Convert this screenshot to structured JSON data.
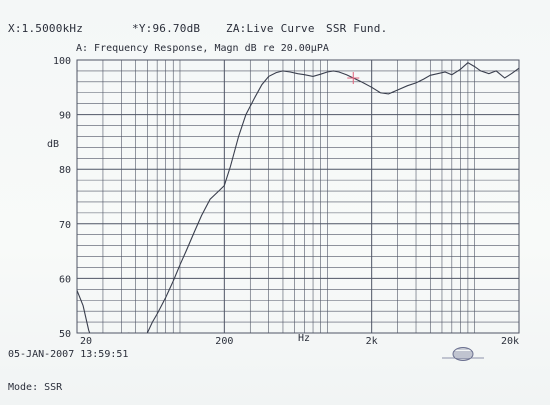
{
  "header": {
    "x_readout": "X:1.5000kHz",
    "y_readout": "*Y:96.70dB",
    "curve_label": "ZA:Live Curve",
    "mode_label": "SSR Fund."
  },
  "footer": {
    "timestamp": "05-JAN-2007 13:59:51",
    "mode": "Mode: SSR"
  },
  "colors": {
    "grid": "#4f5565",
    "curve": "#3a3f4e",
    "cursor": "#e0607a",
    "text": "#2a2e3a"
  },
  "chart_data": {
    "type": "line",
    "title": "A: Frequency Response, Magn dB re 20.00µPA",
    "xlabel": "Hz",
    "ylabel": "dB",
    "xscale": "log",
    "xlim": [
      20,
      20000
    ],
    "ylim": [
      50,
      100
    ],
    "grid": true,
    "x_tick_labels": [
      {
        "value": 20,
        "label": "20"
      },
      {
        "value": 200,
        "label": "200"
      },
      {
        "value": 2000,
        "label": "2k"
      },
      {
        "value": 20000,
        "label": "20k"
      }
    ],
    "y_tick_labels": [
      100,
      90,
      80,
      70,
      60,
      50
    ],
    "cursor": {
      "x": 1500,
      "y": 96.7
    },
    "series": [
      {
        "x": [
          20,
          22,
          24,
          26,
          28,
          30,
          33,
          36,
          40,
          45,
          50,
          55,
          60,
          65,
          70,
          80,
          90,
          100,
          110,
          125,
          140,
          160,
          180,
          200,
          220,
          250,
          280,
          320,
          360,
          400,
          450,
          500,
          560,
          630,
          700,
          800,
          900,
          1000,
          1100,
          1200,
          1350,
          1500,
          1700,
          2000,
          2300,
          2600,
          3000,
          3500,
          4000,
          4500,
          5000,
          5600,
          6300,
          7000,
          8000,
          9000,
          10000,
          11000,
          12500,
          14000,
          16000,
          18000,
          20000
        ],
        "y": [
          57.8,
          55.0,
          50.5,
          48.0,
          46.0,
          46.5,
          47.5,
          48.5,
          49.5,
          50.0,
          49.2,
          48.8,
          50.0,
          52.0,
          53.5,
          56.5,
          59.5,
          62.5,
          65.0,
          68.5,
          71.5,
          74.5,
          75.8,
          77.0,
          80.5,
          86.0,
          90.0,
          93.0,
          95.5,
          97.0,
          97.7,
          98.0,
          97.8,
          97.5,
          97.3,
          97.0,
          97.4,
          97.8,
          98.0,
          97.8,
          97.3,
          96.7,
          96.0,
          95.0,
          94.0,
          93.8,
          94.5,
          95.3,
          95.8,
          96.5,
          97.2,
          97.5,
          97.8,
          97.3,
          98.3,
          99.5,
          98.8,
          98.0,
          97.5,
          98.0,
          96.7,
          97.6,
          98.5
        ]
      }
    ]
  }
}
